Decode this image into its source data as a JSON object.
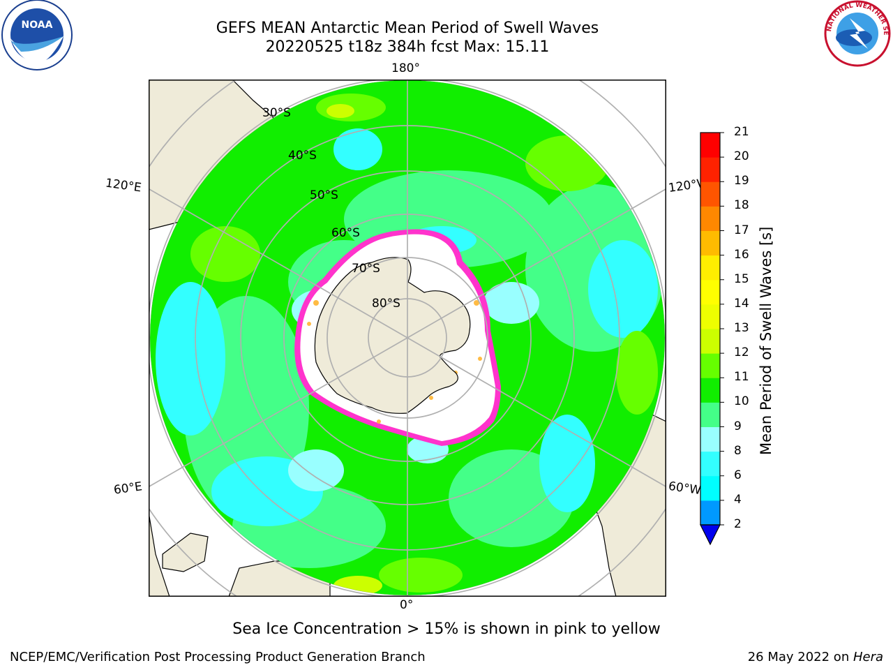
{
  "header": {
    "title_line1": "GEFS MEAN Antarctic Mean Period of Swell Waves",
    "title_line2": "20220525 t18z 384h fcst   Max: 15.11"
  },
  "logos": {
    "noaa_text": "NOAA",
    "nws_text": "NATIONAL WEATHER SERVICE"
  },
  "map": {
    "projection": "south-polar-stereographic",
    "longitude_labels": {
      "top": "180°",
      "bottom": "0°",
      "upper_left": "120°E",
      "upper_right": "120°W",
      "lower_left": "60°E",
      "lower_right": "60°W"
    },
    "latitude_labels": [
      "30°S",
      "40°S",
      "50°S",
      "60°S",
      "70°S",
      "80°S"
    ],
    "colors": {
      "land": "#efebd9",
      "sea_ice": "#ffffff",
      "ice_edge_pink": "#ff33cc",
      "ice_edge_yellow": "#ffbb44",
      "grid": "#b0b0b0"
    }
  },
  "colorbar": {
    "title": "Mean Period of Swell Waves [s]",
    "ticks": [
      "2",
      "4",
      "6",
      "8",
      "9",
      "10",
      "11",
      "12",
      "13",
      "14",
      "15",
      "16",
      "17",
      "18",
      "19",
      "20",
      "21"
    ],
    "colors": [
      "#0033ff",
      "#0099ff",
      "#00ffff",
      "#33ffff",
      "#99ffff",
      "#44ff88",
      "#11ee00",
      "#66ff00",
      "#ccff00",
      "#eeff00",
      "#ffff00",
      "#ffee00",
      "#ffbb00",
      "#ff8800",
      "#ff5500",
      "#ff2200",
      "#ff0000"
    ],
    "under_color": "#0000ee"
  },
  "footer": {
    "subtitle": "Sea Ice Concentration > 15% is shown in pink to yellow",
    "left": "NCEP/EMC/Verification Post Processing Product Generation Branch",
    "right_prefix": "26 May 2022 on ",
    "right_host": "Hera"
  }
}
